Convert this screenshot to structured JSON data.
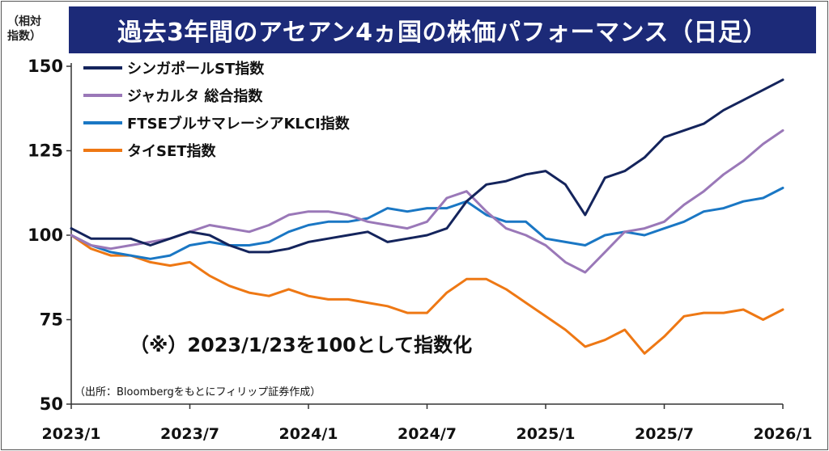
{
  "title": "過去3年間のアセアン4ヵ国の株価パフォーマンス（日足）",
  "y_unit_label": "（相対指数）",
  "note": "（※）2023/1/23を100として指数化",
  "source": "（出所：Bloombergをもとにフィリップ証券作成）",
  "chart_data": {
    "type": "line",
    "title": "過去3年間のアセアン4ヵ国の株価パフォーマンス（日足）",
    "xlabel": "",
    "ylabel": "（相対指数）",
    "ylim": [
      50,
      150
    ],
    "yticks": [
      "150",
      "125",
      "100",
      "75",
      "50"
    ],
    "ytick_values": [
      150,
      125,
      100,
      75,
      50
    ],
    "xlim": [
      "2023-01",
      "2026-01"
    ],
    "xticks": [
      "2023/1",
      "2023/7",
      "2024/1",
      "2024/7",
      "2025/1",
      "2025/7",
      "2026/1"
    ],
    "xtick_values": [
      "2023-01",
      "2023-07",
      "2024-01",
      "2024-07",
      "2025-01",
      "2025-07",
      "2026-01"
    ],
    "grid": false,
    "legend_position": "top-left",
    "x": [
      "2023-01",
      "2023-02",
      "2023-03",
      "2023-04",
      "2023-05",
      "2023-06",
      "2023-07",
      "2023-08",
      "2023-09",
      "2023-10",
      "2023-11",
      "2023-12",
      "2024-01",
      "2024-02",
      "2024-03",
      "2024-04",
      "2024-05",
      "2024-06",
      "2024-07",
      "2024-08",
      "2024-09",
      "2024-10",
      "2024-11",
      "2024-12",
      "2025-01",
      "2025-02",
      "2025-03",
      "2025-04",
      "2025-05",
      "2025-06",
      "2025-07",
      "2025-08",
      "2025-09",
      "2025-10",
      "2025-11",
      "2025-12",
      "2026-01"
    ],
    "series": [
      {
        "name": "シンガポールST指数",
        "color": "#14245c",
        "values": [
          102,
          99,
          99,
          99,
          97,
          99,
          101,
          100,
          97,
          95,
          95,
          96,
          98,
          99,
          100,
          101,
          98,
          99,
          100,
          102,
          110,
          115,
          116,
          118,
          119,
          115,
          106,
          117,
          119,
          123,
          129,
          131,
          133,
          137,
          140,
          143,
          146
        ]
      },
      {
        "name": "ジャカルタ 総合指数",
        "color": "#9a78b8",
        "values": [
          100,
          97,
          96,
          97,
          98,
          99,
          101,
          103,
          102,
          101,
          103,
          106,
          107,
          107,
          106,
          104,
          103,
          102,
          104,
          111,
          113,
          107,
          102,
          100,
          97,
          92,
          89,
          95,
          101,
          102,
          104,
          109,
          113,
          118,
          122,
          127,
          131
        ]
      },
      {
        "name": "FTSEブルサマレーシアKLCI指数",
        "color": "#1a77c4",
        "values": [
          100,
          97,
          95,
          94,
          93,
          94,
          97,
          98,
          97,
          97,
          98,
          101,
          103,
          104,
          104,
          105,
          108,
          107,
          108,
          108,
          110,
          106,
          104,
          104,
          99,
          98,
          97,
          100,
          101,
          100,
          102,
          104,
          107,
          108,
          110,
          111,
          114
        ]
      },
      {
        "name": "タイSET指数",
        "color": "#ee7814",
        "values": [
          100,
          96,
          94,
          94,
          92,
          91,
          92,
          88,
          85,
          83,
          82,
          84,
          82,
          81,
          81,
          80,
          79,
          77,
          77,
          83,
          87,
          87,
          84,
          80,
          76,
          72,
          67,
          69,
          72,
          65,
          70,
          76,
          77,
          77,
          78,
          75,
          78
        ]
      }
    ]
  }
}
